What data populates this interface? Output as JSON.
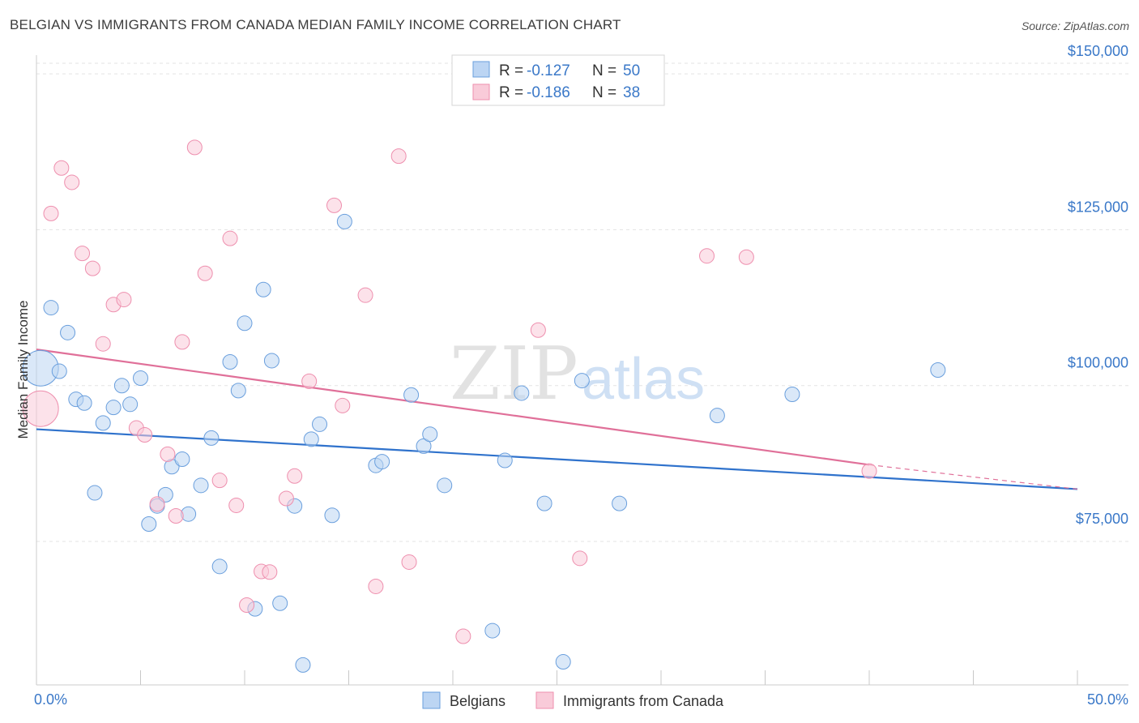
{
  "header": {
    "title": "BELGIAN VS IMMIGRANTS FROM CANADA MEDIAN FAMILY INCOME CORRELATION CHART",
    "source": "Source: ZipAtlas.com"
  },
  "watermark": {
    "part1": "ZIP",
    "part2": "atlas"
  },
  "legend_top": [
    {
      "r_label": "R =",
      "r_value": "-0.127",
      "n_label": "N =",
      "n_value": "50"
    },
    {
      "r_label": "R =",
      "r_value": "-0.186",
      "n_label": "N =",
      "n_value": "38"
    }
  ],
  "chart_data": {
    "type": "scatter",
    "title": "BELGIAN VS IMMIGRANTS FROM CANADA MEDIAN FAMILY INCOME CORRELATION CHART",
    "xlabel": "",
    "ylabel": "Median Family Income",
    "xlim": [
      0,
      50
    ],
    "ylim": [
      52000,
      153000
    ],
    "x_tick_labels": {
      "min": "0.0%",
      "max": "50.0%"
    },
    "y_ticks": [
      {
        "value": 75000,
        "label": "$75,000"
      },
      {
        "value": 100000,
        "label": "$100,000"
      },
      {
        "value": 125000,
        "label": "$125,000"
      },
      {
        "value": 150000,
        "label": "$150,000"
      }
    ],
    "grid": "horizontal dashed",
    "legend_placement": "top-center and bottom",
    "colors": {
      "belgians": "#6a9fdd",
      "canada": "#ee8fae",
      "belgians_line": "#2f72cc",
      "canada_line": "#e07099"
    },
    "series": [
      {
        "name": "Belgians",
        "trend": [
          [
            0,
            93000
          ],
          [
            50,
            83400
          ]
        ],
        "points": [
          {
            "x": 0.2,
            "y": 102800,
            "big": true
          },
          {
            "x": 0.7,
            "y": 112500
          },
          {
            "x": 1.1,
            "y": 102300
          },
          {
            "x": 1.5,
            "y": 108500
          },
          {
            "x": 1.9,
            "y": 97800
          },
          {
            "x": 2.3,
            "y": 97200
          },
          {
            "x": 2.8,
            "y": 82800
          },
          {
            "x": 3.2,
            "y": 94000
          },
          {
            "x": 3.7,
            "y": 96500
          },
          {
            "x": 4.1,
            "y": 100000
          },
          {
            "x": 4.5,
            "y": 97000
          },
          {
            "x": 5.0,
            "y": 101200
          },
          {
            "x": 5.4,
            "y": 77800
          },
          {
            "x": 5.8,
            "y": 80700
          },
          {
            "x": 6.2,
            "y": 82500
          },
          {
            "x": 6.5,
            "y": 87000
          },
          {
            "x": 7.0,
            "y": 88200
          },
          {
            "x": 7.3,
            "y": 79400
          },
          {
            "x": 7.9,
            "y": 84000
          },
          {
            "x": 8.4,
            "y": 91600
          },
          {
            "x": 8.8,
            "y": 71000
          },
          {
            "x": 9.3,
            "y": 103800
          },
          {
            "x": 9.7,
            "y": 99200
          },
          {
            "x": 10.0,
            "y": 110000
          },
          {
            "x": 10.5,
            "y": 64200
          },
          {
            "x": 10.9,
            "y": 115400
          },
          {
            "x": 11.3,
            "y": 104000
          },
          {
            "x": 11.7,
            "y": 65100
          },
          {
            "x": 12.4,
            "y": 80700
          },
          {
            "x": 12.8,
            "y": 55200
          },
          {
            "x": 13.2,
            "y": 91400
          },
          {
            "x": 13.6,
            "y": 93800
          },
          {
            "x": 14.2,
            "y": 79200
          },
          {
            "x": 14.8,
            "y": 126300
          },
          {
            "x": 16.3,
            "y": 87200
          },
          {
            "x": 16.6,
            "y": 87800
          },
          {
            "x": 18.0,
            "y": 98500
          },
          {
            "x": 18.6,
            "y": 90300
          },
          {
            "x": 18.9,
            "y": 92200
          },
          {
            "x": 19.6,
            "y": 84000
          },
          {
            "x": 22.5,
            "y": 88000
          },
          {
            "x": 23.3,
            "y": 98800
          },
          {
            "x": 24.4,
            "y": 81100
          },
          {
            "x": 21.9,
            "y": 60700
          },
          {
            "x": 25.3,
            "y": 55700
          },
          {
            "x": 26.2,
            "y": 100800
          },
          {
            "x": 28.0,
            "y": 81100
          },
          {
            "x": 32.7,
            "y": 95200
          },
          {
            "x": 36.3,
            "y": 98600
          },
          {
            "x": 43.3,
            "y": 102500
          }
        ]
      },
      {
        "name": "Immigrants from Canada",
        "trend": [
          [
            0,
            105800
          ],
          [
            40,
            87300
          ]
        ],
        "trend_dashed": [
          [
            40,
            87300
          ],
          [
            50,
            83400
          ]
        ],
        "points": [
          {
            "x": 0.2,
            "y": 96300,
            "big": true
          },
          {
            "x": 0.7,
            "y": 127600
          },
          {
            "x": 1.2,
            "y": 134900
          },
          {
            "x": 1.7,
            "y": 132600
          },
          {
            "x": 2.2,
            "y": 121200
          },
          {
            "x": 2.7,
            "y": 118800
          },
          {
            "x": 3.2,
            "y": 106700
          },
          {
            "x": 3.7,
            "y": 113000
          },
          {
            "x": 4.2,
            "y": 113800
          },
          {
            "x": 4.8,
            "y": 93200
          },
          {
            "x": 5.2,
            "y": 92100
          },
          {
            "x": 5.8,
            "y": 81000
          },
          {
            "x": 6.3,
            "y": 89000
          },
          {
            "x": 6.7,
            "y": 79100
          },
          {
            "x": 7.0,
            "y": 107000
          },
          {
            "x": 7.6,
            "y": 138200
          },
          {
            "x": 8.1,
            "y": 118000
          },
          {
            "x": 8.8,
            "y": 84800
          },
          {
            "x": 9.3,
            "y": 123600
          },
          {
            "x": 9.6,
            "y": 80800
          },
          {
            "x": 10.1,
            "y": 64800
          },
          {
            "x": 10.8,
            "y": 70200
          },
          {
            "x": 11.2,
            "y": 70100
          },
          {
            "x": 12.0,
            "y": 81900
          },
          {
            "x": 12.4,
            "y": 85500
          },
          {
            "x": 13.1,
            "y": 100700
          },
          {
            "x": 14.3,
            "y": 128900
          },
          {
            "x": 14.7,
            "y": 96800
          },
          {
            "x": 15.8,
            "y": 114500
          },
          {
            "x": 16.3,
            "y": 67800
          },
          {
            "x": 17.4,
            "y": 136800
          },
          {
            "x": 17.9,
            "y": 71700
          },
          {
            "x": 20.5,
            "y": 59800
          },
          {
            "x": 24.1,
            "y": 108900
          },
          {
            "x": 26.1,
            "y": 72300
          },
          {
            "x": 32.2,
            "y": 120800
          },
          {
            "x": 34.1,
            "y": 120600
          },
          {
            "x": 40.0,
            "y": 86300
          }
        ]
      }
    ]
  },
  "legend_bottom": [
    {
      "label": "Belgians"
    },
    {
      "label": "Immigrants from Canada"
    }
  ]
}
